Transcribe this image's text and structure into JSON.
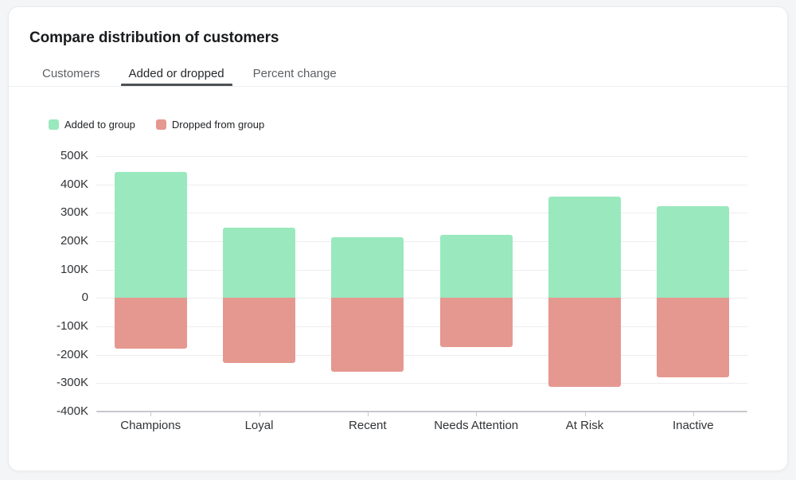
{
  "header": {
    "title": "Compare distribution of customers"
  },
  "tabs": [
    {
      "label": "Customers",
      "active": false
    },
    {
      "label": "Added or dropped",
      "active": true
    },
    {
      "label": "Percent change",
      "active": false
    }
  ],
  "legend": {
    "added_label": "Added to group",
    "dropped_label": "Dropped from group"
  },
  "colors": {
    "added": "#9ae8be",
    "dropped": "#e5988f",
    "grid": "#ededf1",
    "axis": "#c6c8cc"
  },
  "chart_data": {
    "type": "bar",
    "title": "Compare distribution of customers — Added or dropped",
    "categories": [
      "Champions",
      "Loyal",
      "Recent",
      "Needs Attention",
      "At Risk",
      "Inactive"
    ],
    "series": [
      {
        "name": "Added to group",
        "values": [
          444000,
          248000,
          214000,
          223000,
          358000,
          323000
        ]
      },
      {
        "name": "Dropped from group",
        "values": [
          -178000,
          -228000,
          -261000,
          -173000,
          -314000,
          -279000
        ]
      }
    ],
    "ylim": [
      -400000,
      500000
    ],
    "ytick_step": 100000,
    "ytick_labels": [
      "500K",
      "400K",
      "300K",
      "200K",
      "100K",
      "0",
      "-100K",
      "-200K",
      "-300K",
      "-400K"
    ],
    "grid": true,
    "legend_position": "top-left"
  }
}
